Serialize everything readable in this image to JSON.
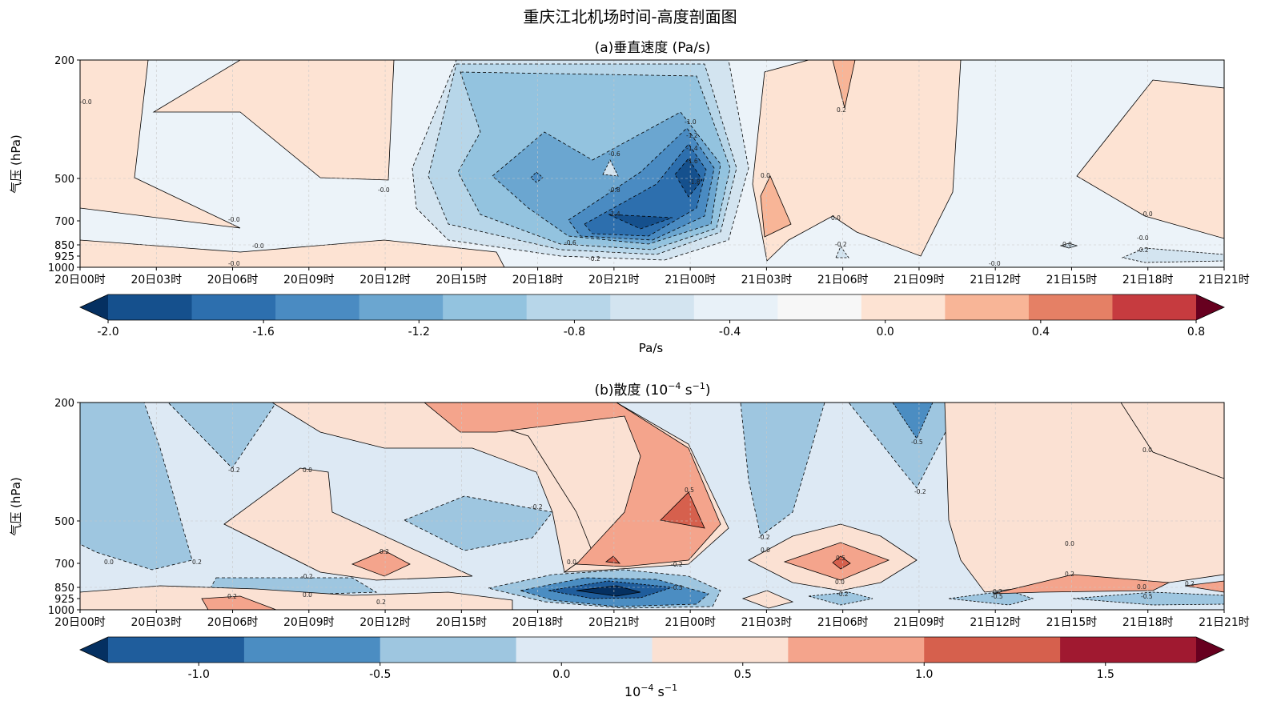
{
  "suptitle": "重庆江北机场时间-高度剖面图",
  "chart_data": [
    {
      "type": "contour",
      "title": "(a)垂直速度 (Pa/s)",
      "ylabel": "气压 (hPa)",
      "yticks": [
        200,
        500,
        700,
        850,
        925,
        1000
      ],
      "xticks": [
        "20日00时",
        "20日03时",
        "20日06时",
        "20日09时",
        "20日12时",
        "20日15时",
        "20日18时",
        "20日21时",
        "21日00时",
        "21日03时",
        "21日06时",
        "21日09时",
        "21日12时",
        "21日15时",
        "21日18时",
        "21日21时"
      ],
      "colorbar_label": "Pa/s",
      "colorbar_ticks": [
        "-2.0",
        "-1.6",
        "-1.2",
        "-0.8",
        "-0.4",
        "0.0",
        "0.4",
        "0.8"
      ],
      "colorbar_range": [
        -2.0,
        0.8
      ],
      "level_step": 0.2,
      "colors": [
        "#053061",
        "#15508d",
        "#2d6fae",
        "#4a8bc2",
        "#6ba6d0",
        "#93c3df",
        "#b7d6e9",
        "#d3e4f0",
        "#e8f1f8",
        "#f7f7f7",
        "#fde3d3",
        "#f8b597",
        "#e58065",
        "#c63b3f",
        "#67001f"
      ],
      "contour_labels": [
        "-0.6",
        "-1.0",
        "-1.2",
        "-1.4",
        "-1.6",
        "-1.8",
        "-0.8",
        "-1.4",
        "-0.6",
        "-0.2",
        "-0.0",
        "-0.0",
        "-0.0",
        "-0.0",
        "-0.0",
        "-0.0",
        "-0.0",
        "0.2",
        "-0.2",
        "-0.2",
        "0.0",
        "0.0",
        "0.0",
        "-0.0"
      ]
    },
    {
      "type": "contour",
      "title_text": "(b)散度 (10",
      "title_exp1": "−4",
      "title_mid": " s",
      "title_exp2": "−1",
      "title_end": ")",
      "ylabel": "气压 (hPa)",
      "yticks": [
        200,
        500,
        700,
        850,
        925,
        1000
      ],
      "xticks": [
        "20日00时",
        "20日03时",
        "20日06时",
        "20日09时",
        "20日12时",
        "20日15时",
        "20日18时",
        "20日21时",
        "21日00时",
        "21日03时",
        "21日06时",
        "21日09时",
        "21日12时",
        "21日15时",
        "21日18时",
        "21日21时"
      ],
      "colorbar_label_base": "10",
      "colorbar_label_exp1": "−4",
      "colorbar_label_mid": " s",
      "colorbar_label_exp2": "−1",
      "colorbar_ticks": [
        "-1.0",
        "-0.5",
        "0.0",
        "0.5",
        "1.0",
        "1.5"
      ],
      "colorbar_range": [
        -1.25,
        1.75
      ],
      "level_step": 0.25,
      "colors": [
        "#053061",
        "#1f5d9c",
        "#4b8dc2",
        "#9ec6e0",
        "#dde9f4",
        "#fbe1d3",
        "#f4a48c",
        "#d6604d",
        "#a01930",
        "#67001f"
      ],
      "contour_labels": [
        "-0.2",
        "0.0",
        "-0.2",
        "0.2",
        "0.2",
        "0.0",
        "-0.2",
        "0.2",
        "0.0",
        "0.0",
        "0.2",
        "-0.2",
        "0.0",
        "0.5",
        "-0.2",
        "-0.5",
        "-0.2",
        "0.0",
        "-0.5",
        "0.2",
        "0.0",
        "0.2",
        "0.2",
        "0.5",
        "-0.5",
        "-0.2",
        "0.0",
        "-0.5",
        "0.0"
      ]
    }
  ]
}
